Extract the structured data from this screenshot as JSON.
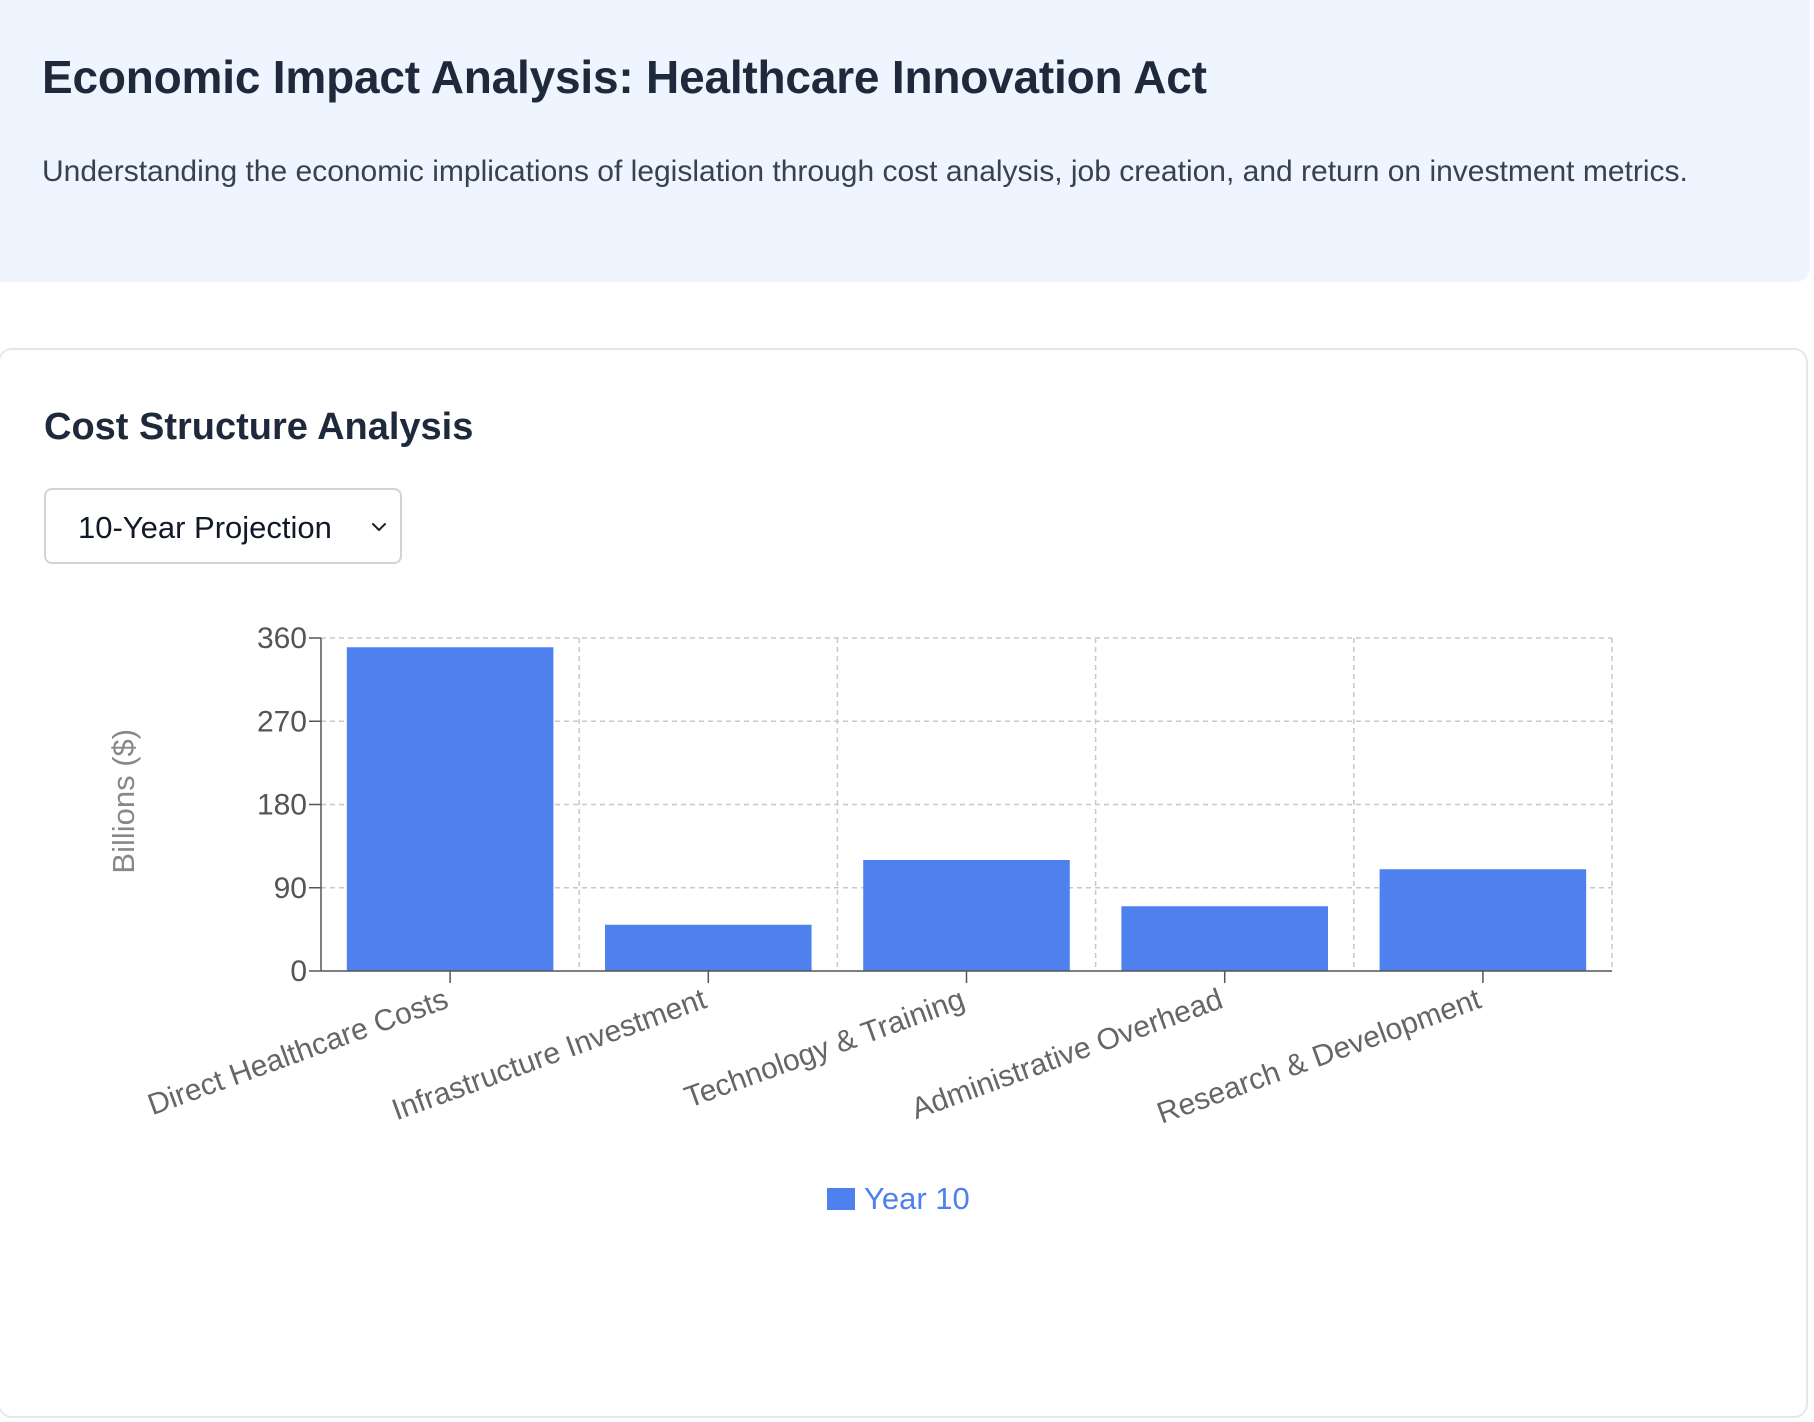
{
  "header": {
    "title": "Economic Impact Analysis: Healthcare Innovation Act",
    "subtitle": "Understanding the economic implications of legislation through cost analysis, job creation, and return on investment metrics."
  },
  "card": {
    "title": "Cost Structure Analysis",
    "select": {
      "value": "10-Year Projection"
    }
  },
  "icons": {
    "select_arrow": "chevron-down-icon"
  },
  "colors": {
    "bar": "#4e81ee",
    "legend_text": "#4e81ee",
    "header_bg": "#eef5ff"
  },
  "chart_data": {
    "type": "bar",
    "categories": [
      "Direct Healthcare Costs",
      "Infrastructure Investment",
      "Technology & Training",
      "Administrative Overhead",
      "Research & Development"
    ],
    "series": [
      {
        "name": "Year 10",
        "values": [
          350,
          50,
          120,
          70,
          110
        ]
      }
    ],
    "ylabel": "Billions ($)",
    "ylim": [
      0,
      360
    ],
    "yticks": [
      0,
      90,
      180,
      270,
      360
    ],
    "grid": true,
    "legend_position": "bottom"
  }
}
